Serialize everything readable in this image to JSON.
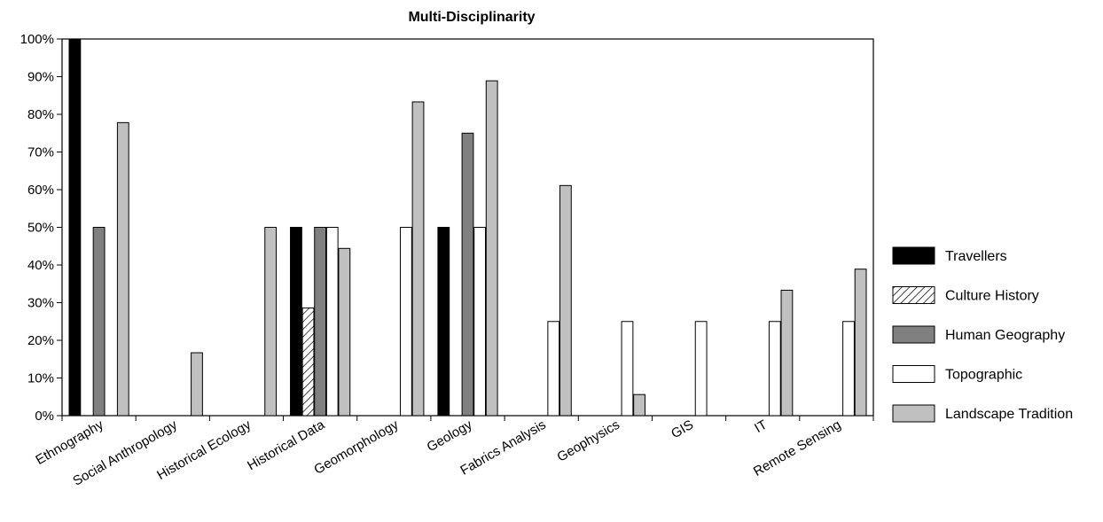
{
  "chart_data": {
    "type": "bar",
    "title": "Multi-Disciplinarity",
    "xlabel": "",
    "ylabel": "",
    "ylim": [
      0,
      100
    ],
    "y_ticks": [
      "0%",
      "10%",
      "20%",
      "30%",
      "40%",
      "50%",
      "60%",
      "70%",
      "80%",
      "90%",
      "100%"
    ],
    "grid": false,
    "legend_position": "right",
    "categories": [
      "Ethnography",
      "Social Anthropology",
      "Historical Ecology",
      "Historical Data",
      "Geomorphology",
      "Geology",
      "Fabrics Analysis",
      "Geophysics",
      "GIS",
      "IT",
      "Remote Sensing"
    ],
    "series": [
      {
        "name": "Travellers",
        "fill": "#000000",
        "pattern": "solid",
        "values": [
          100,
          0,
          0,
          50,
          0,
          50,
          0,
          0,
          0,
          0,
          0
        ]
      },
      {
        "name": "Culture History",
        "fill": "#ffffff",
        "pattern": "hatch",
        "values": [
          0,
          0,
          0,
          28.6,
          0,
          0,
          0,
          0,
          0,
          0,
          0
        ]
      },
      {
        "name": "Human Geography",
        "fill": "#808080",
        "pattern": "solid",
        "values": [
          50,
          0,
          0,
          50,
          0,
          75,
          0,
          0,
          0,
          0,
          0
        ]
      },
      {
        "name": "Topographic",
        "fill": "#ffffff",
        "pattern": "solid",
        "values": [
          0,
          0,
          0,
          50,
          50,
          50,
          25,
          25,
          25,
          25,
          25
        ]
      },
      {
        "name": "Landscape Tradition",
        "fill": "#c0c0c0",
        "pattern": "solid",
        "values": [
          77.8,
          16.7,
          50,
          44.4,
          83.3,
          88.9,
          61.1,
          5.6,
          0,
          33.3,
          38.9
        ]
      }
    ]
  }
}
